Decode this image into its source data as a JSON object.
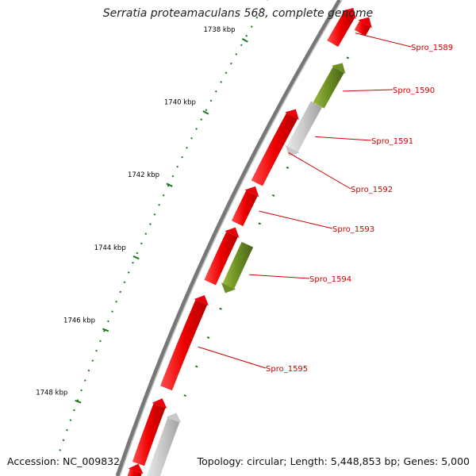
{
  "header": {
    "title": "Serratia proteamaculans 568, complete genome"
  },
  "footer": {
    "accession": "Accession: NC_009832",
    "summary": "Topology: circular; Length: 5,448,853 bp; Genes: 5,000"
  },
  "ticks": [
    {
      "label": "1738 kbp"
    },
    {
      "label": "1740 kbp"
    },
    {
      "label": "1742 kbp"
    },
    {
      "label": "1744 kbp"
    },
    {
      "label": "1746 kbp"
    },
    {
      "label": "1748 kbp"
    }
  ],
  "genes": [
    {
      "id": "Spro_1589",
      "strand": "forward",
      "color": "#e8000b"
    },
    {
      "id": "Spro_1590",
      "strand": "forward",
      "color": "#6b8e23"
    },
    {
      "id": "Spro_1591",
      "strand": "reverse",
      "color": "#c8c8c8"
    },
    {
      "id": "Spro_1592",
      "strand": "forward",
      "color": "#e8000b"
    },
    {
      "id": "Spro_1593",
      "strand": "forward",
      "color": "#e8000b"
    },
    {
      "id": "Spro_1594",
      "strand": "reverse",
      "color": "#6b8e23"
    },
    {
      "id": "Spro_1595",
      "strand": "forward",
      "color": "#e8000b"
    }
  ],
  "colors": {
    "backbone": "#777777",
    "tick": "#1a7a1a",
    "label": "#cc0000"
  }
}
